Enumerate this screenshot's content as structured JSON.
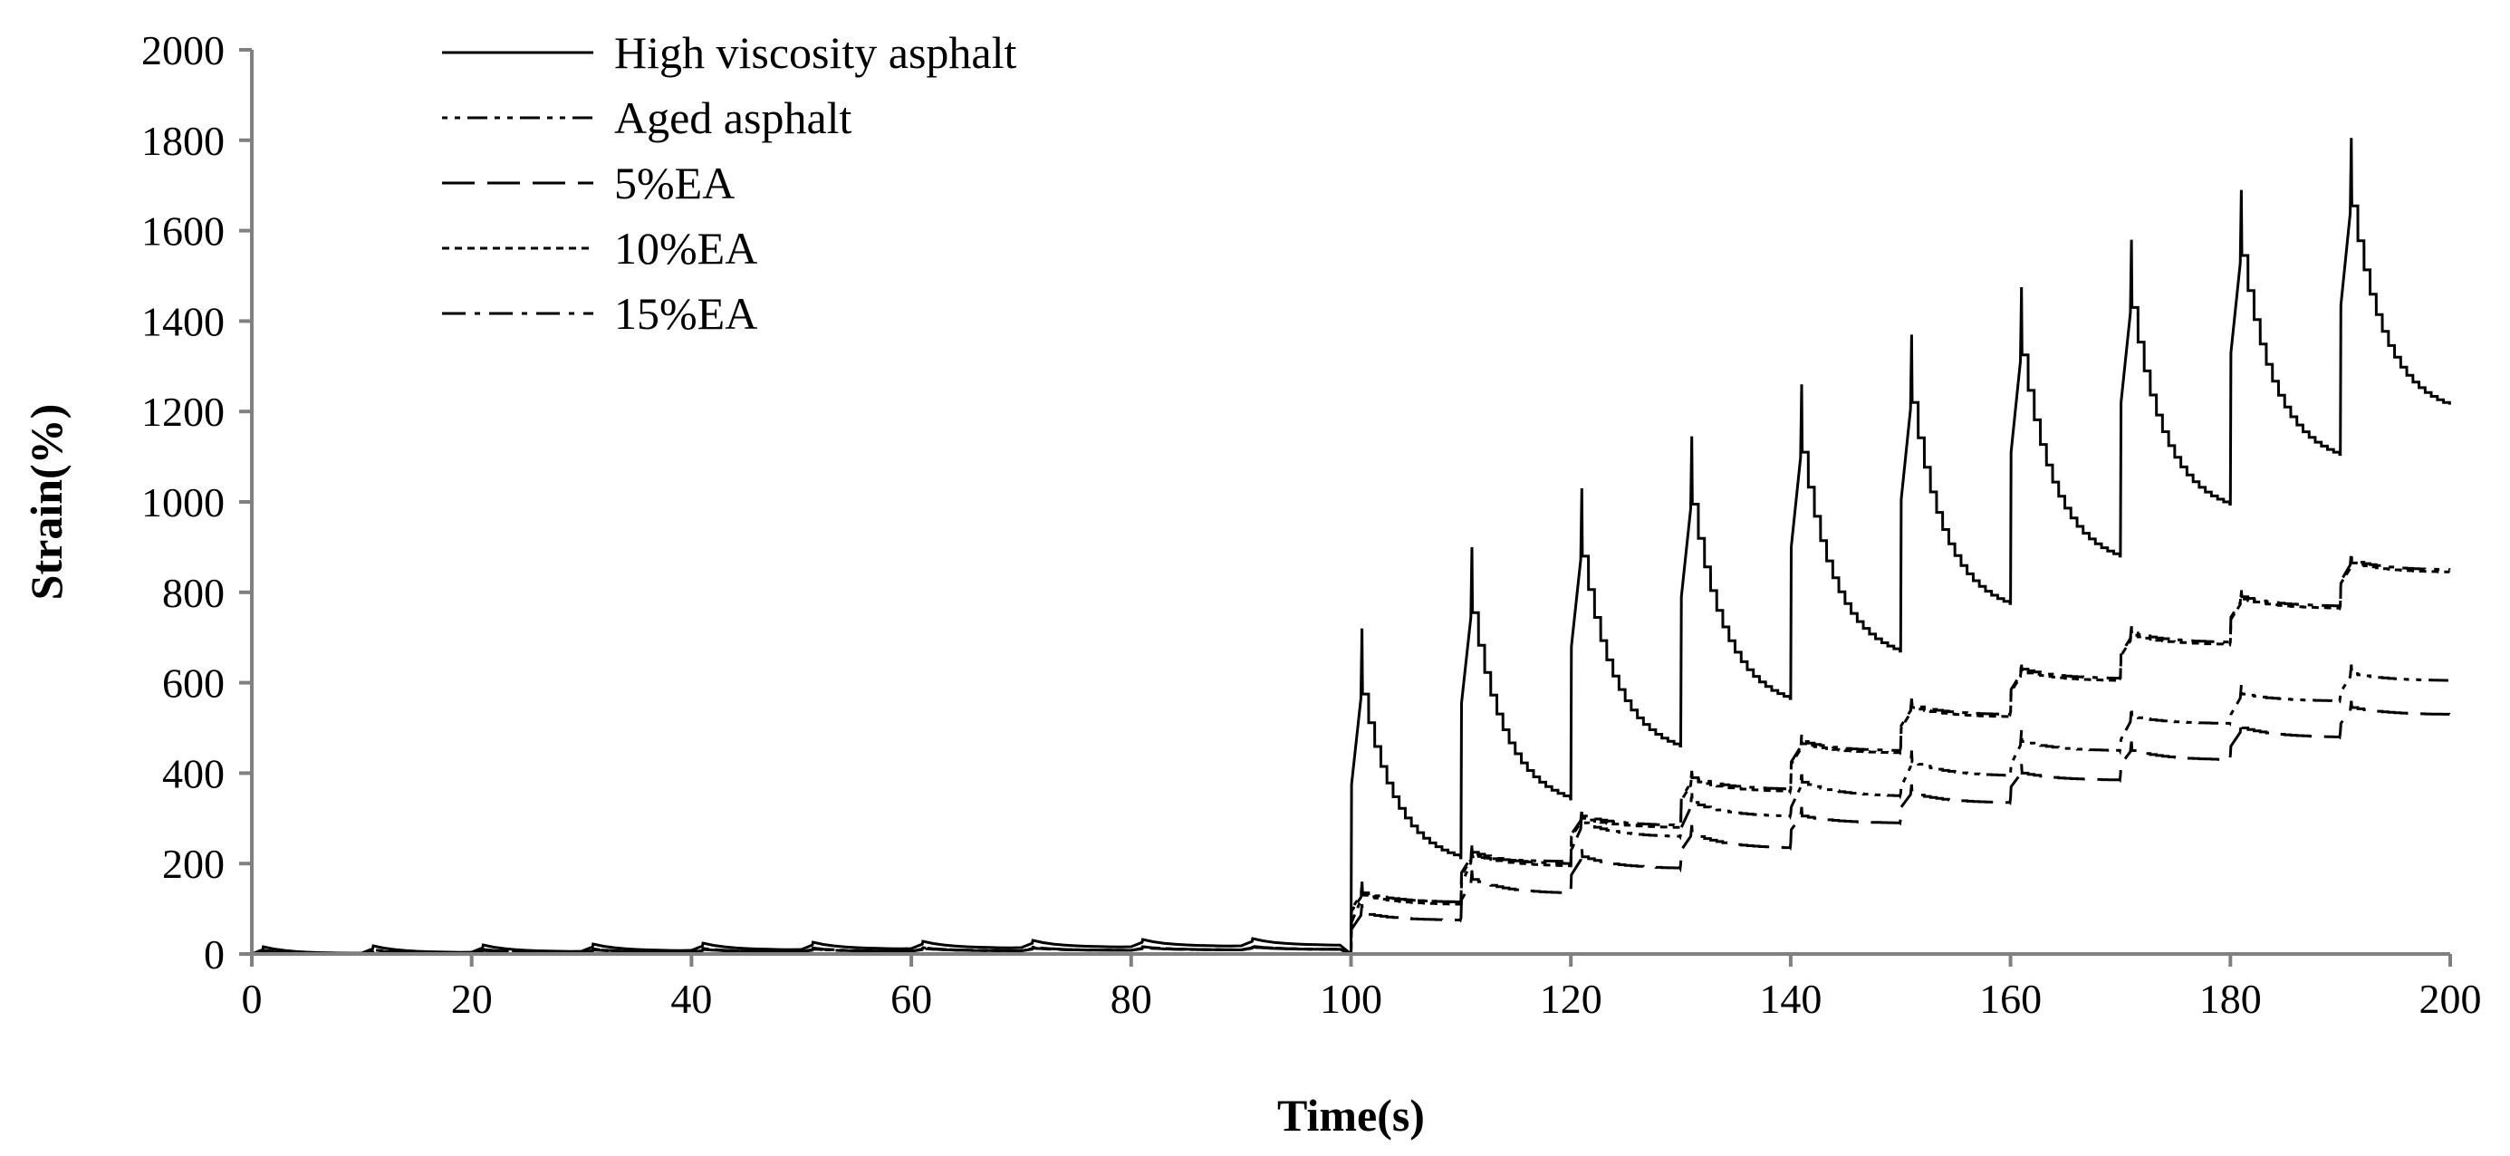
{
  "chart_data": {
    "type": "line",
    "title": "",
    "xlabel": "Time(s)",
    "ylabel": "Strain(%)",
    "xlim": [
      0,
      200
    ],
    "ylim": [
      0,
      2000
    ],
    "xticks": [
      0,
      20,
      40,
      60,
      80,
      100,
      120,
      140,
      160,
      180,
      200
    ],
    "yticks": [
      0,
      200,
      400,
      600,
      800,
      1000,
      1200,
      1400,
      1600,
      1800,
      2000
    ],
    "grid": false,
    "legend_position": "top-left",
    "series": [
      {
        "name": "High viscosity asphalt",
        "dash": "solid",
        "color": "#000000",
        "low_stress_cycles": {
          "start": 0,
          "end": 100,
          "baseline": [
            0,
            2,
            4,
            6,
            8,
            10,
            12,
            14,
            16,
            18
          ],
          "jump": 16
        },
        "high_stress_cycles": {
          "base": [
            0,
            210,
            340,
            460,
            565,
            670,
            775,
            880,
            995,
            1105
          ],
          "jump_to": [
            375,
            555,
            680,
            790,
            900,
            1005,
            1110,
            1220,
            1330,
            1435
          ],
          "peak": [
            720,
            900,
            1030,
            1145,
            1260,
            1370,
            1475,
            1580,
            1690,
            1805
          ],
          "after_peak": [
            575,
            755,
            880,
            995,
            1110,
            1220,
            1325,
            1430,
            1545,
            1655
          ],
          "end": [
            215,
            345,
            460,
            565,
            670,
            775,
            880,
            995,
            1105,
            1215
          ]
        }
      },
      {
        "name": "Aged asphalt",
        "dash": "dot-dot-dash",
        "color": "#000000",
        "low_stress_cycles": {
          "start": 0,
          "end": 100,
          "baseline": [
            0,
            1,
            2,
            3,
            4,
            5,
            6,
            7,
            8,
            9
          ],
          "jump": 6
        },
        "high_stress_cycles": {
          "base": [
            0,
            120,
            205,
            265,
            310,
            355,
            400,
            460,
            520,
            570
          ],
          "jump_to": [
            70,
            155,
            230,
            280,
            325,
            370,
            420,
            475,
            530,
            580
          ],
          "peak": [
            160,
            240,
            315,
            360,
            405,
            450,
            495,
            545,
            595,
            640
          ],
          "after_peak": [
            135,
            215,
            290,
            335,
            380,
            425,
            470,
            525,
            575,
            620
          ],
          "end": [
            115,
            205,
            260,
            305,
            350,
            395,
            450,
            510,
            560,
            605
          ]
        }
      },
      {
        "name": "5%EA",
        "dash": "long-dash",
        "color": "#000000",
        "low_stress_cycles": {
          "start": 0,
          "end": 100,
          "baseline": [
            0,
            1,
            2,
            3,
            4,
            5,
            6,
            7,
            8,
            9
          ],
          "jump": 6
        },
        "high_stress_cycles": {
          "base": [
            0,
            80,
            140,
            200,
            245,
            300,
            345,
            395,
            440,
            490
          ],
          "jump_to": [
            55,
            120,
            175,
            230,
            275,
            325,
            370,
            420,
            460,
            510
          ],
          "peak": [
            110,
            185,
            235,
            285,
            325,
            375,
            420,
            470,
            515,
            560
          ],
          "after_peak": [
            90,
            165,
            215,
            265,
            305,
            355,
            400,
            450,
            500,
            545
          ],
          "end": [
            75,
            135,
            190,
            235,
            290,
            335,
            385,
            430,
            480,
            530
          ]
        }
      },
      {
        "name": "10%EA",
        "dash": "short-dash",
        "color": "#000000",
        "low_stress_cycles": {
          "start": 0,
          "end": 100,
          "baseline": [
            0,
            1,
            2,
            3,
            4,
            5,
            6,
            7,
            8,
            9
          ],
          "jump": 8
        },
        "high_stress_cycles": {
          "base": [
            0,
            110,
            195,
            285,
            365,
            450,
            530,
            610,
            690,
            770
          ],
          "jump_to": [
            95,
            175,
            260,
            340,
            420,
            500,
            580,
            660,
            740,
            820
          ],
          "peak": [
            150,
            235,
            315,
            400,
            480,
            560,
            640,
            720,
            800,
            880
          ],
          "after_peak": [
            130,
            220,
            300,
            385,
            465,
            545,
            625,
            705,
            785,
            865
          ],
          "end": [
            110,
            195,
            280,
            360,
            445,
            525,
            605,
            685,
            765,
            845
          ]
        }
      },
      {
        "name": "15%EA",
        "dash": "dash-dot",
        "color": "#000000",
        "low_stress_cycles": {
          "start": 0,
          "end": 100,
          "baseline": [
            0,
            1,
            2,
            3,
            4,
            5,
            6,
            7,
            8,
            9
          ],
          "jump": 8
        },
        "high_stress_cycles": {
          "base": [
            0,
            115,
            200,
            290,
            370,
            455,
            535,
            615,
            695,
            775
          ],
          "jump_to": [
            100,
            180,
            265,
            345,
            425,
            505,
            585,
            665,
            745,
            825
          ],
          "peak": [
            155,
            240,
            320,
            405,
            485,
            565,
            645,
            725,
            805,
            890
          ],
          "after_peak": [
            135,
            225,
            305,
            390,
            470,
            550,
            630,
            710,
            790,
            870
          ],
          "end": [
            115,
            200,
            285,
            365,
            450,
            530,
            610,
            690,
            770,
            850
          ]
        }
      }
    ]
  }
}
